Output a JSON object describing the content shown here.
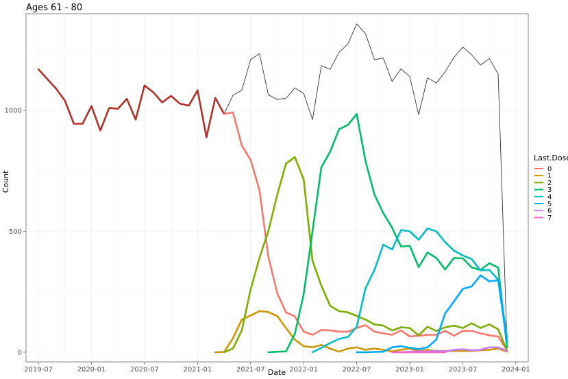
{
  "chart_data": {
    "type": "line",
    "title": "Ages 61 - 80",
    "xlabel": "Date",
    "ylabel": "Count",
    "x_start": "2019-07",
    "x_end": "2024-01",
    "x_ticks": [
      "2019-07",
      "2020-01",
      "2020-07",
      "2021-01",
      "2021-07",
      "2022-01",
      "2022-07",
      "2023-01",
      "2023-07",
      "2024-01"
    ],
    "ylim": [
      -40,
      1400
    ],
    "y_ticks": [
      0,
      500,
      1000
    ],
    "grid": true,
    "legend": {
      "title": "Last.Dose",
      "position": "right",
      "entries": [
        "0",
        "1",
        "2",
        "3",
        "4",
        "5",
        "6",
        "7"
      ]
    },
    "colors": {
      "total": "#333333",
      "pre": "#b2302a",
      "0": "#F8766D",
      "1": "#CD9600",
      "2": "#7CAE00",
      "3": "#00BE67",
      "4": "#00BFC4",
      "5": "#00A9FF",
      "6": "#C77CFF",
      "7": "#FF61CC"
    },
    "series": [
      {
        "name": "",
        "role": "pre",
        "points": [
          [
            "2019-07",
            1170
          ],
          [
            "2019-08",
            1130
          ],
          [
            "2019-09",
            1090
          ],
          [
            "2019-10",
            1040
          ],
          [
            "2019-11",
            945
          ],
          [
            "2019-12",
            945
          ],
          [
            "2020-01",
            1018
          ],
          [
            "2020-02",
            917
          ],
          [
            "2020-03",
            1010
          ],
          [
            "2020-04",
            1007
          ],
          [
            "2020-05",
            1048
          ],
          [
            "2020-06",
            962
          ],
          [
            "2020-07",
            1103
          ],
          [
            "2020-08",
            1075
          ],
          [
            "2020-09",
            1033
          ],
          [
            "2020-10",
            1060
          ],
          [
            "2020-11",
            1028
          ],
          [
            "2020-12",
            1020
          ],
          [
            "2021-01",
            1083
          ],
          [
            "2021-02",
            889
          ],
          [
            "2021-03",
            1052
          ],
          [
            "2021-04",
            985
          ]
        ]
      },
      {
        "name": "",
        "role": "total",
        "points": [
          [
            "2021-04",
            985
          ],
          [
            "2021-05",
            1063
          ],
          [
            "2021-06",
            1083
          ],
          [
            "2021-07",
            1210
          ],
          [
            "2021-08",
            1235
          ],
          [
            "2021-09",
            1065
          ],
          [
            "2021-10",
            1045
          ],
          [
            "2021-11",
            1050
          ],
          [
            "2021-12",
            1093
          ],
          [
            "2022-01",
            1070
          ],
          [
            "2022-02",
            962
          ],
          [
            "2022-03",
            1185
          ],
          [
            "2022-04",
            1170
          ],
          [
            "2022-05",
            1240
          ],
          [
            "2022-06",
            1275
          ],
          [
            "2022-07",
            1358
          ],
          [
            "2022-08",
            1317
          ],
          [
            "2022-09",
            1210
          ],
          [
            "2022-10",
            1217
          ],
          [
            "2022-11",
            1120
          ],
          [
            "2022-12",
            1172
          ],
          [
            "2023-01",
            1140
          ],
          [
            "2023-02",
            982
          ],
          [
            "2023-03",
            1135
          ],
          [
            "2023-04",
            1113
          ],
          [
            "2023-05",
            1160
          ],
          [
            "2023-06",
            1220
          ],
          [
            "2023-07",
            1262
          ],
          [
            "2023-08",
            1230
          ],
          [
            "2023-09",
            1187
          ],
          [
            "2023-10",
            1215
          ],
          [
            "2023-11",
            1150
          ],
          [
            "2023-12",
            30
          ]
        ]
      },
      {
        "name": "0",
        "points": [
          [
            "2021-04",
            985
          ],
          [
            "2021-05",
            992
          ],
          [
            "2021-06",
            855
          ],
          [
            "2021-07",
            795
          ],
          [
            "2021-08",
            670
          ],
          [
            "2021-09",
            395
          ],
          [
            "2021-10",
            245
          ],
          [
            "2021-11",
            165
          ],
          [
            "2021-12",
            148
          ],
          [
            "2022-01",
            85
          ],
          [
            "2022-02",
            72
          ],
          [
            "2022-03",
            92
          ],
          [
            "2022-04",
            90
          ],
          [
            "2022-05",
            85
          ],
          [
            "2022-06",
            85
          ],
          [
            "2022-07",
            100
          ],
          [
            "2022-08",
            112
          ],
          [
            "2022-09",
            85
          ],
          [
            "2022-10",
            78
          ],
          [
            "2022-11",
            72
          ],
          [
            "2022-12",
            90
          ],
          [
            "2023-01",
            65
          ],
          [
            "2023-02",
            68
          ],
          [
            "2023-03",
            72
          ],
          [
            "2023-04",
            72
          ],
          [
            "2023-05",
            88
          ],
          [
            "2023-06",
            68
          ],
          [
            "2023-07",
            88
          ],
          [
            "2023-08",
            88
          ],
          [
            "2023-09",
            78
          ],
          [
            "2023-10",
            70
          ],
          [
            "2023-11",
            65
          ],
          [
            "2023-12",
            8
          ]
        ]
      },
      {
        "name": "1",
        "points": [
          [
            "2021-03",
            0
          ],
          [
            "2021-04",
            1
          ],
          [
            "2021-05",
            58
          ],
          [
            "2021-06",
            135
          ],
          [
            "2021-07",
            152
          ],
          [
            "2021-08",
            170
          ],
          [
            "2021-09",
            166
          ],
          [
            "2021-10",
            150
          ],
          [
            "2021-11",
            100
          ],
          [
            "2021-12",
            52
          ],
          [
            "2022-01",
            25
          ],
          [
            "2022-02",
            20
          ],
          [
            "2022-03",
            30
          ],
          [
            "2022-04",
            15
          ],
          [
            "2022-05",
            2
          ],
          [
            "2022-06",
            15
          ],
          [
            "2022-07",
            20
          ],
          [
            "2022-08",
            10
          ],
          [
            "2022-09",
            15
          ],
          [
            "2022-10",
            10
          ],
          [
            "2022-11",
            3
          ],
          [
            "2022-12",
            10
          ],
          [
            "2023-01",
            15
          ],
          [
            "2023-02",
            5
          ],
          [
            "2023-03",
            10
          ],
          [
            "2023-04",
            5
          ],
          [
            "2023-05",
            5
          ],
          [
            "2023-06",
            5
          ],
          [
            "2023-07",
            5
          ],
          [
            "2023-08",
            5
          ],
          [
            "2023-09",
            8
          ],
          [
            "2023-10",
            10
          ],
          [
            "2023-11",
            15
          ],
          [
            "2023-12",
            2
          ]
        ]
      },
      {
        "name": "2",
        "points": [
          [
            "2021-04",
            0
          ],
          [
            "2021-05",
            15
          ],
          [
            "2021-06",
            90
          ],
          [
            "2021-07",
            260
          ],
          [
            "2021-08",
            390
          ],
          [
            "2021-09",
            500
          ],
          [
            "2021-10",
            650
          ],
          [
            "2021-11",
            780
          ],
          [
            "2021-12",
            807
          ],
          [
            "2022-01",
            715
          ],
          [
            "2022-02",
            378
          ],
          [
            "2022-03",
            275
          ],
          [
            "2022-04",
            192
          ],
          [
            "2022-05",
            170
          ],
          [
            "2022-06",
            165
          ],
          [
            "2022-07",
            150
          ],
          [
            "2022-08",
            135
          ],
          [
            "2022-09",
            115
          ],
          [
            "2022-10",
            110
          ],
          [
            "2022-11",
            90
          ],
          [
            "2022-12",
            103
          ],
          [
            "2023-01",
            100
          ],
          [
            "2023-02",
            70
          ],
          [
            "2023-03",
            105
          ],
          [
            "2023-04",
            88
          ],
          [
            "2023-05",
            103
          ],
          [
            "2023-06",
            110
          ],
          [
            "2023-07",
            100
          ],
          [
            "2023-08",
            120
          ],
          [
            "2023-09",
            100
          ],
          [
            "2023-10",
            115
          ],
          [
            "2023-11",
            95
          ],
          [
            "2023-12",
            5
          ]
        ]
      },
      {
        "name": "3",
        "points": [
          [
            "2021-09",
            0
          ],
          [
            "2021-10",
            2
          ],
          [
            "2021-11",
            3
          ],
          [
            "2021-12",
            75
          ],
          [
            "2022-01",
            240
          ],
          [
            "2022-02",
            500
          ],
          [
            "2022-03",
            765
          ],
          [
            "2022-04",
            830
          ],
          [
            "2022-05",
            922
          ],
          [
            "2022-06",
            940
          ],
          [
            "2022-07",
            985
          ],
          [
            "2022-08",
            790
          ],
          [
            "2022-09",
            652
          ],
          [
            "2022-10",
            575
          ],
          [
            "2022-11",
            515
          ],
          [
            "2022-12",
            437
          ],
          [
            "2023-01",
            440
          ],
          [
            "2023-02",
            352
          ],
          [
            "2023-03",
            412
          ],
          [
            "2023-04",
            390
          ],
          [
            "2023-05",
            342
          ],
          [
            "2023-06",
            390
          ],
          [
            "2023-07",
            388
          ],
          [
            "2023-08",
            350
          ],
          [
            "2023-09",
            340
          ],
          [
            "2023-10",
            368
          ],
          [
            "2023-11",
            350
          ],
          [
            "2023-12",
            20
          ]
        ]
      },
      {
        "name": "4",
        "points": [
          [
            "2022-02",
            0
          ],
          [
            "2022-03",
            18
          ],
          [
            "2022-04",
            38
          ],
          [
            "2022-05",
            55
          ],
          [
            "2022-06",
            63
          ],
          [
            "2022-07",
            105
          ],
          [
            "2022-08",
            265
          ],
          [
            "2022-09",
            340
          ],
          [
            "2022-10",
            445
          ],
          [
            "2022-11",
            425
          ],
          [
            "2022-12",
            505
          ],
          [
            "2023-01",
            500
          ],
          [
            "2023-02",
            465
          ],
          [
            "2023-03",
            512
          ],
          [
            "2023-04",
            500
          ],
          [
            "2023-05",
            455
          ],
          [
            "2023-06",
            420
          ],
          [
            "2023-07",
            400
          ],
          [
            "2023-08",
            385
          ],
          [
            "2023-09",
            338
          ],
          [
            "2023-10",
            340
          ],
          [
            "2023-11",
            300
          ],
          [
            "2023-12",
            60
          ]
        ]
      },
      {
        "name": "5",
        "points": [
          [
            "2022-07",
            0
          ],
          [
            "2022-08",
            0
          ],
          [
            "2022-09",
            1
          ],
          [
            "2022-10",
            2
          ],
          [
            "2022-11",
            20
          ],
          [
            "2022-12",
            25
          ],
          [
            "2023-01",
            18
          ],
          [
            "2023-02",
            13
          ],
          [
            "2023-03",
            20
          ],
          [
            "2023-04",
            52
          ],
          [
            "2023-05",
            160
          ],
          [
            "2023-06",
            210
          ],
          [
            "2023-07",
            262
          ],
          [
            "2023-08",
            272
          ],
          [
            "2023-09",
            318
          ],
          [
            "2023-10",
            293
          ],
          [
            "2023-11",
            298
          ],
          [
            "2023-12",
            40
          ]
        ]
      },
      {
        "name": "6",
        "points": [
          [
            "2022-12",
            0
          ],
          [
            "2023-01",
            2
          ],
          [
            "2023-02",
            3
          ],
          [
            "2023-03",
            3
          ],
          [
            "2023-04",
            5
          ],
          [
            "2023-05",
            3
          ],
          [
            "2023-06",
            10
          ],
          [
            "2023-07",
            12
          ],
          [
            "2023-08",
            8
          ],
          [
            "2023-09",
            10
          ],
          [
            "2023-10",
            20
          ],
          [
            "2023-11",
            20
          ],
          [
            "2023-12",
            5
          ]
        ]
      },
      {
        "name": "7",
        "points": [
          [
            "2022-11",
            0
          ],
          [
            "2022-12",
            0
          ],
          [
            "2023-01",
            0
          ],
          [
            "2023-02",
            0
          ],
          [
            "2023-03",
            0
          ],
          [
            "2023-04",
            0
          ],
          [
            "2023-05",
            0
          ]
        ]
      }
    ]
  }
}
